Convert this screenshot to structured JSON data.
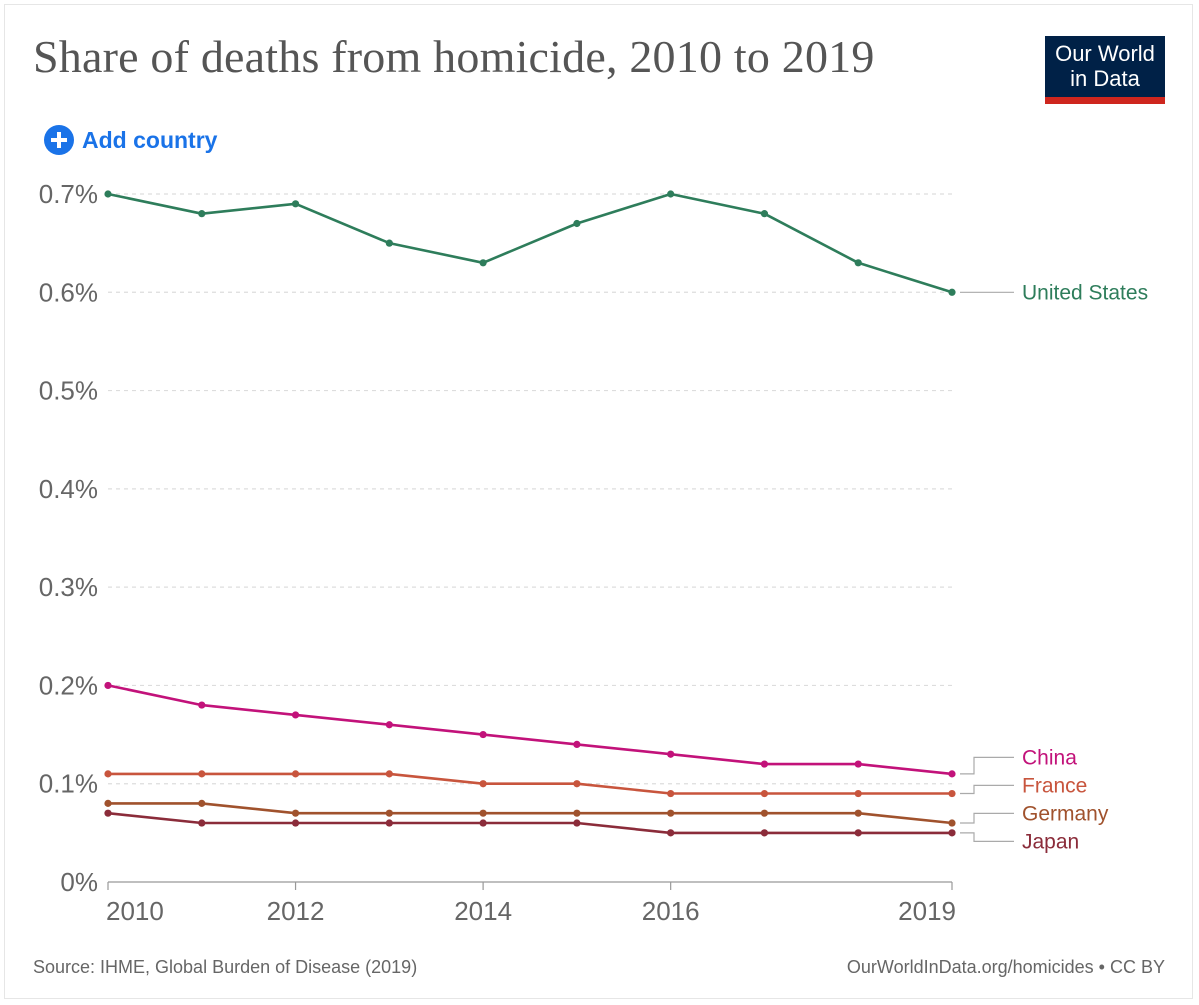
{
  "header": {
    "title": "Share of deaths from homicide, 2010 to 2019",
    "logo_line1": "Our World",
    "logo_line2": "in Data",
    "add_country_label": "Add country"
  },
  "footer": {
    "source": "Source: IHME, Global Burden of Disease (2019)",
    "license": "OurWorldInData.org/homicides • CC BY"
  },
  "chart_data": {
    "type": "line",
    "title": "Share of deaths from homicide, 2010 to 2019",
    "xlabel": "",
    "ylabel": "",
    "x": [
      2010,
      2011,
      2012,
      2013,
      2014,
      2015,
      2016,
      2017,
      2018,
      2019
    ],
    "xlim": [
      2010,
      2019
    ],
    "ylim": [
      0,
      0.7
    ],
    "x_ticks": [
      "2010",
      "2012",
      "2014",
      "2016",
      "2019"
    ],
    "y_ticks": [
      0,
      0.1,
      0.2,
      0.3,
      0.4,
      0.5,
      0.6,
      0.7
    ],
    "y_tick_labels": [
      "0%",
      "0.1%",
      "0.2%",
      "0.3%",
      "0.4%",
      "0.5%",
      "0.6%",
      "0.7%"
    ],
    "grid": true,
    "legend": "right, end-of-line labels",
    "series": [
      {
        "name": "United States",
        "color": "#2e7d5b",
        "values": [
          0.7,
          0.68,
          0.69,
          0.65,
          0.63,
          0.67,
          0.7,
          0.68,
          0.63,
          0.6
        ]
      },
      {
        "name": "China",
        "color": "#c2127a",
        "values": [
          0.2,
          0.18,
          0.17,
          0.16,
          0.15,
          0.14,
          0.13,
          0.12,
          0.12,
          0.11
        ]
      },
      {
        "name": "France",
        "color": "#c8553d",
        "values": [
          0.11,
          0.11,
          0.11,
          0.11,
          0.1,
          0.1,
          0.09,
          0.09,
          0.09,
          0.09
        ]
      },
      {
        "name": "Germany",
        "color": "#a0522d",
        "values": [
          0.08,
          0.08,
          0.07,
          0.07,
          0.07,
          0.07,
          0.07,
          0.07,
          0.07,
          0.06
        ]
      },
      {
        "name": "Japan",
        "color": "#8b2c3a",
        "values": [
          0.07,
          0.06,
          0.06,
          0.06,
          0.06,
          0.06,
          0.05,
          0.05,
          0.05,
          0.05
        ]
      }
    ]
  }
}
